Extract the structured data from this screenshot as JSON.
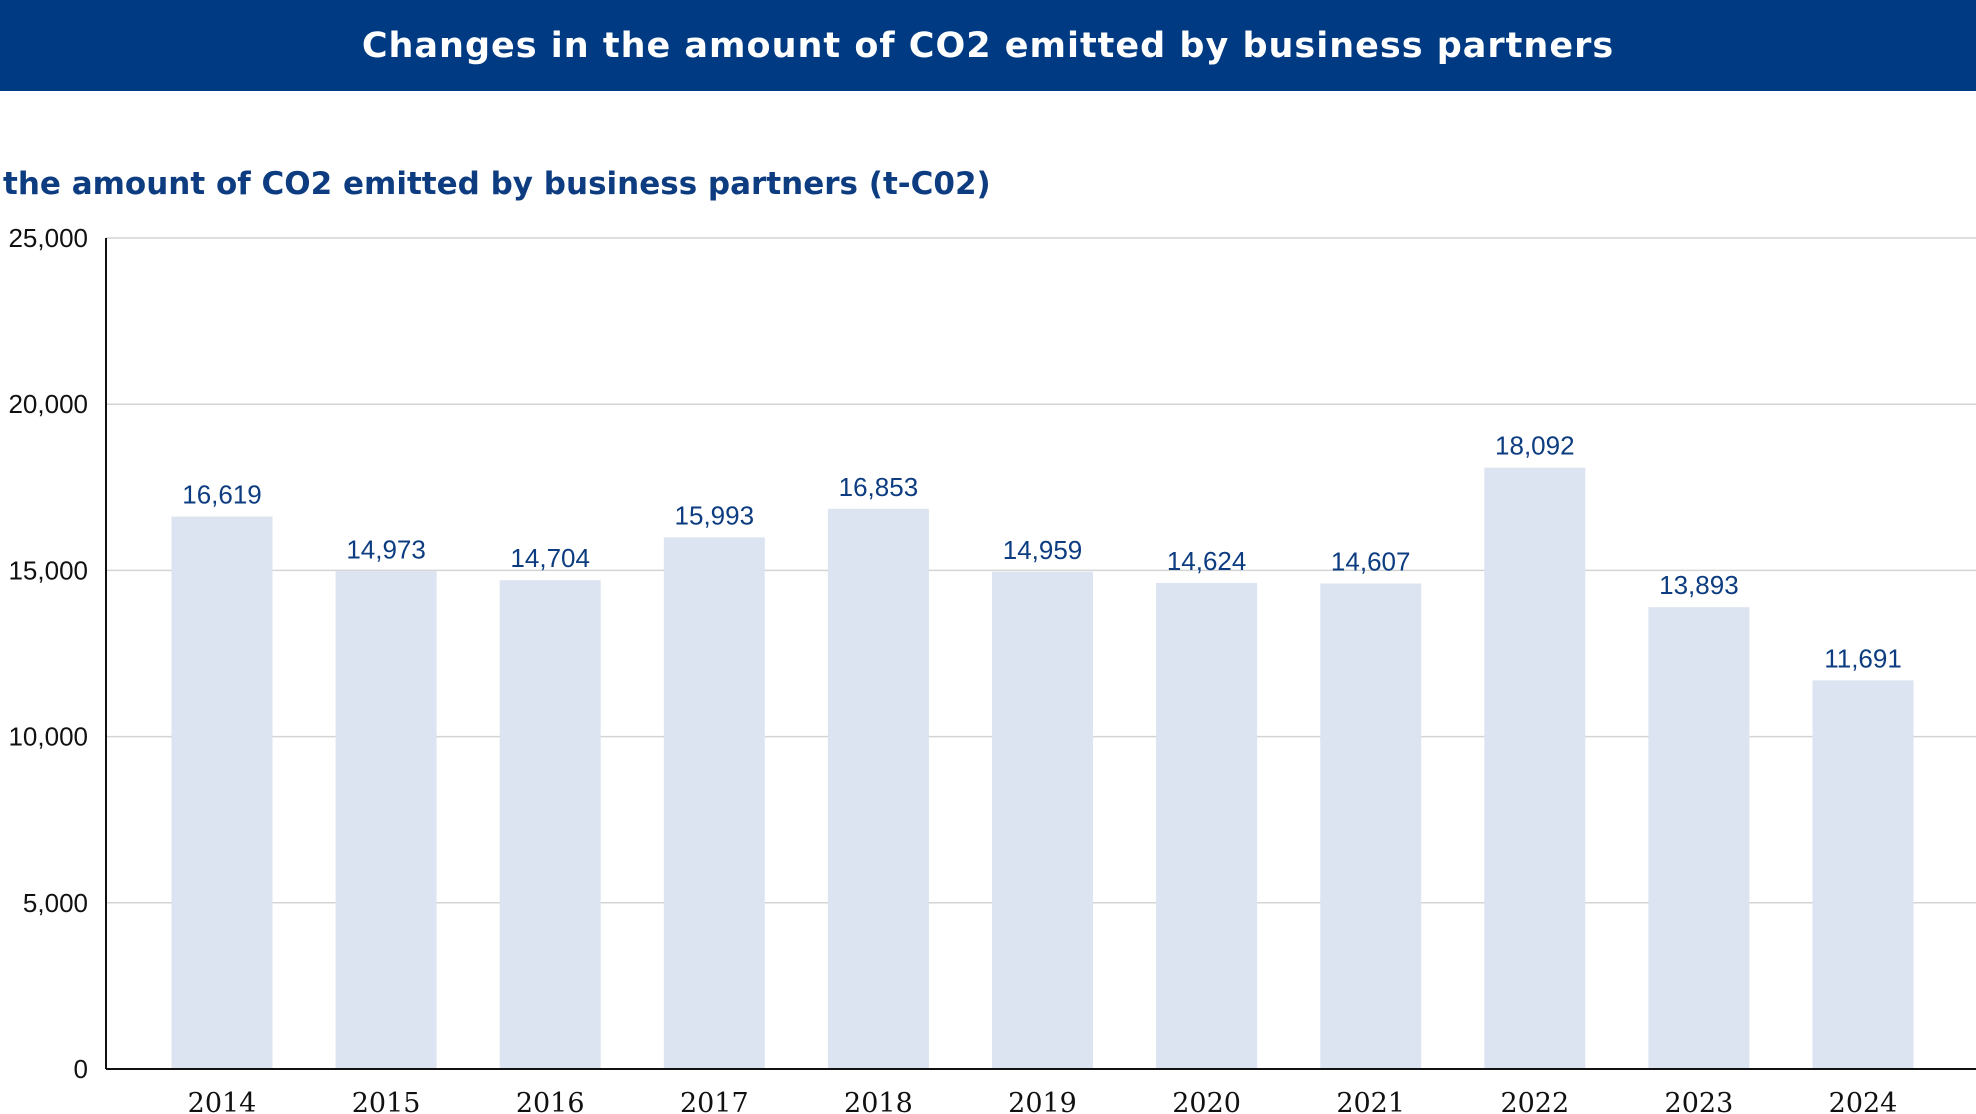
{
  "header": {
    "title": "Changes in the amount of CO2 emitted by business partners"
  },
  "chart_data": {
    "type": "bar",
    "title": "Changes in the amount of CO2 emitted by business partners",
    "subtitle": "the amount of CO2 emitted by business partners (t-C02)",
    "xlabel": "",
    "ylabel": "",
    "categories": [
      "2014",
      "2015",
      "2016",
      "2017",
      "2018",
      "2019",
      "2020",
      "2021",
      "2022",
      "2023",
      "2024"
    ],
    "values": [
      16619,
      14973,
      14704,
      15993,
      16853,
      14959,
      14624,
      14607,
      18092,
      13893,
      11691
    ],
    "value_labels": [
      "16,619",
      "14,973",
      "14,704",
      "15,993",
      "16,853",
      "14,959",
      "14,624",
      "14,607",
      "18,092",
      "13,893",
      "11,691"
    ],
    "ylim": [
      0,
      25000
    ],
    "yticks": [
      0,
      5000,
      10000,
      15000,
      20000,
      25000
    ],
    "ytick_labels": [
      "0",
      "5,000",
      "10,000",
      "15,000",
      "20,000",
      "25,000"
    ],
    "grid": true,
    "colors": {
      "bar": "#dbe4f0",
      "label": "#0d3d80",
      "header_bg": "#003a83"
    }
  }
}
